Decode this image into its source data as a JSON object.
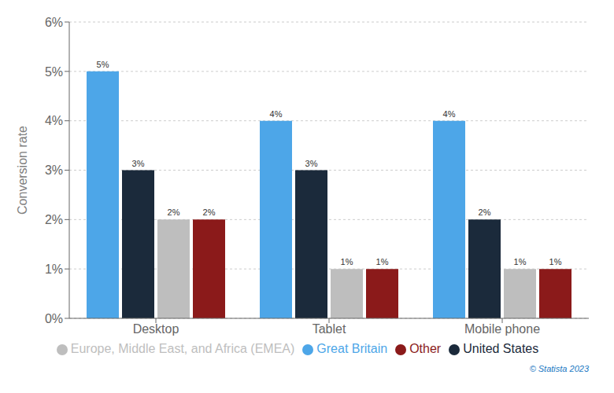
{
  "chart_data": {
    "type": "bar",
    "categories": [
      "Desktop",
      "Tablet",
      "Mobile phone"
    ],
    "series": [
      {
        "name": "Great Britain",
        "color": "#4DA6E8",
        "values": [
          5,
          4,
          4
        ],
        "value_labels": [
          "5%",
          "4%",
          "4%"
        ]
      },
      {
        "name": "United States",
        "color": "#1B2A3B",
        "values": [
          3,
          3,
          2
        ],
        "value_labels": [
          "3%",
          "3%",
          "2%"
        ]
      },
      {
        "name": "Europe, Middle East, and Africa (EMEA)",
        "color": "#BEBEBE",
        "values": [
          2,
          1,
          1
        ],
        "value_labels": [
          "2%",
          "1%",
          "1%"
        ]
      },
      {
        "name": "Other",
        "color": "#8B1A1A",
        "values": [
          2,
          1,
          1
        ],
        "value_labels": [
          "2%",
          "1%",
          "1%"
        ]
      }
    ],
    "y_label": "Conversion rate",
    "ylim": [
      0,
      6
    ],
    "yticks": [
      {
        "value": 0,
        "label": "0%"
      },
      {
        "value": 1,
        "label": "1%"
      },
      {
        "value": 2,
        "label": "2%"
      },
      {
        "value": 3,
        "label": "3%"
      },
      {
        "value": 4,
        "label": "4%"
      },
      {
        "value": 5,
        "label": "5%"
      },
      {
        "value": 6,
        "label": "6%"
      }
    ],
    "grid": true,
    "legend": "bottom",
    "data_labels": true,
    "annotations": [
      "© Statista 2023"
    ]
  }
}
